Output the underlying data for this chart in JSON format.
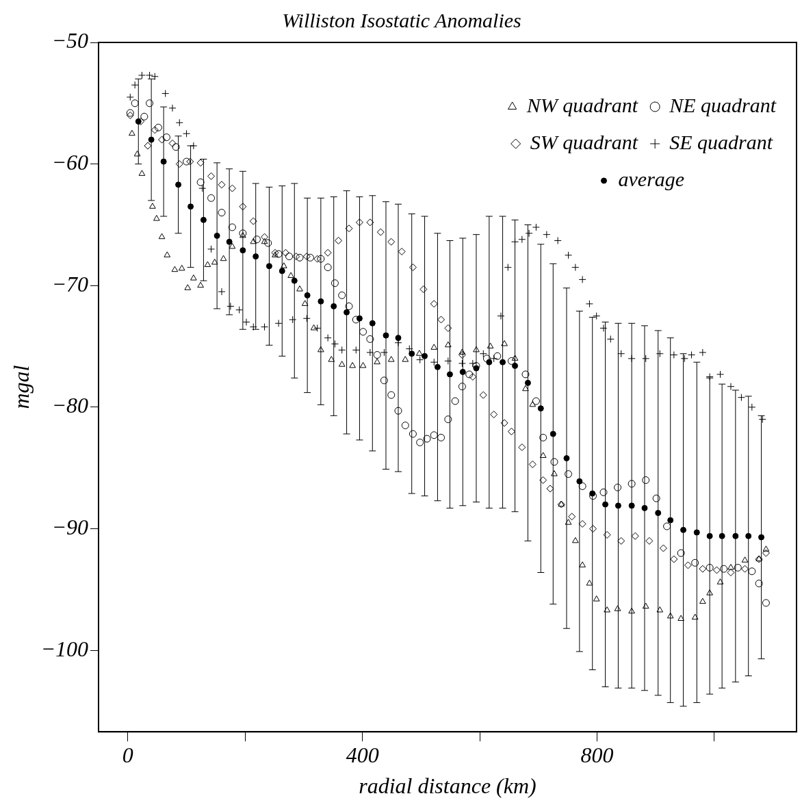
{
  "chart_data": {
    "type": "scatter",
    "title": "Williston Isostatic Anomalies",
    "xlabel": "radial distance (km)",
    "ylabel": "mgal",
    "xlim": [
      -50,
      1140
    ],
    "ylim": [
      -106.7,
      -50
    ],
    "xticks": [
      0,
      {
        "value": 200,
        "label": null
      },
      400,
      {
        "value": 600,
        "label": null
      },
      800,
      {
        "value": 1000,
        "label": null
      }
    ],
    "yticks": [
      -50,
      -60,
      -70,
      -80,
      -90,
      -100
    ],
    "legend": "top right",
    "series": [
      {
        "name": "NW quadrant",
        "color": "#000000",
        "marker": "triangle",
        "x": [
          7,
          16,
          24,
          42,
          49,
          58,
          67,
          80,
          92,
          102,
          112,
          124,
          136,
          148,
          163,
          178,
          196,
          214,
          233,
          251,
          266,
          278,
          293,
          302,
          317,
          329,
          347,
          365,
          383,
          401,
          425,
          449,
          473,
          497,
          522,
          546,
          570,
          594,
          618,
          642,
          660,
          678,
          690,
          708,
          727,
          739,
          751,
          763,
          775,
          787,
          799,
          817,
          835,
          859,
          883,
          907,
          925,
          943,
          967,
          980,
          992,
          1010,
          1028,
          1052,
          1076,
          1088
        ],
        "values": [
          -57.5,
          -59.2,
          -60.8,
          -63.5,
          -64.5,
          -66,
          -67.5,
          -68.7,
          -68.6,
          -70.2,
          -69.4,
          -70,
          -68.3,
          -68.1,
          -67.8,
          -66.8,
          -65.9,
          -66.4,
          -66.4,
          -67.5,
          -68.4,
          -69.2,
          -70.3,
          -71.5,
          -73.5,
          -75.3,
          -76.1,
          -76.5,
          -76.6,
          -76.6,
          -76.3,
          -76.1,
          -76.1,
          -75.6,
          -75.1,
          -74.9,
          -75.5,
          -75.3,
          -75,
          -74.8,
          -76,
          -78.5,
          -79.8,
          -84,
          -85.5,
          -88,
          -89.5,
          -91,
          -93,
          -94.5,
          -95.8,
          -96.7,
          -96.6,
          -96.8,
          -96.4,
          -96.7,
          -97.2,
          -97.4,
          -97.3,
          -96,
          -95.3,
          -94.4,
          -93.2,
          -92.6,
          -92.5,
          -91.7
        ]
      },
      {
        "name": "NE quadrant",
        "color": "#000000",
        "marker": "circle",
        "x": [
          4,
          12,
          28,
          37,
          52,
          66,
          82,
          100,
          124,
          142,
          160,
          178,
          196,
          220,
          239,
          257,
          275,
          293,
          311,
          329,
          341,
          353,
          365,
          377,
          389,
          401,
          413,
          425,
          437,
          449,
          461,
          473,
          486,
          498,
          510,
          522,
          534,
          546,
          558,
          570,
          582,
          594,
          612,
          630,
          654,
          678,
          696,
          708,
          727,
          751,
          775,
          793,
          811,
          835,
          859,
          883,
          901,
          919,
          943,
          967,
          992,
          1016,
          1040,
          1064,
          1076,
          1088
        ],
        "values": [
          -55.8,
          -55,
          -56.1,
          -55,
          -57,
          -57.8,
          -58.6,
          -59.8,
          -61.5,
          -62.8,
          -64,
          -65.2,
          -65.7,
          -66.2,
          -66.5,
          -67.4,
          -67.6,
          -67.7,
          -67.7,
          -67.8,
          -68.5,
          -69.8,
          -70.8,
          -71.7,
          -72.8,
          -73.8,
          -74.4,
          -75.7,
          -77.8,
          -79,
          -80.3,
          -81.5,
          -82.2,
          -82.9,
          -82.6,
          -82.3,
          -82.5,
          -81,
          -79.5,
          -78.3,
          -77.3,
          -76.6,
          -76,
          -75.8,
          -76.2,
          -77.3,
          -79.5,
          -82.5,
          -84.5,
          -85.5,
          -86.5,
          -87.3,
          -87,
          -86.6,
          -86.3,
          -86,
          -87.5,
          -89.8,
          -92,
          -92.8,
          -93.2,
          -93.3,
          -93.2,
          -93.5,
          -94.5,
          -96.1
        ]
      },
      {
        "name": "SW quadrant",
        "color": "#000000",
        "marker": "diamond",
        "x": [
          4,
          22,
          34,
          46,
          58,
          76,
          88,
          106,
          124,
          142,
          160,
          178,
          196,
          214,
          233,
          251,
          269,
          287,
          305,
          323,
          341,
          359,
          377,
          395,
          413,
          431,
          449,
          467,
          486,
          504,
          522,
          534,
          546,
          570,
          588,
          606,
          624,
          642,
          654,
          672,
          690,
          708,
          720,
          739,
          757,
          775,
          793,
          817,
          841,
          865,
          889,
          913,
          931,
          955,
          980,
          1004,
          1028,
          1052,
          1076,
          1088
        ],
        "values": [
          -56,
          -56.5,
          -58.5,
          -57.2,
          -58,
          -58.3,
          -60,
          -59.8,
          -59.9,
          -61,
          -61.7,
          -62,
          -63.5,
          -64.7,
          -66,
          -67.3,
          -67.3,
          -67.6,
          -67.6,
          -67.8,
          -67.3,
          -66.3,
          -65.3,
          -64.8,
          -64.8,
          -65.6,
          -66.4,
          -67.2,
          -68.5,
          -70.3,
          -71.5,
          -72.8,
          -73.5,
          -75.7,
          -77.5,
          -79,
          -80.6,
          -81.3,
          -82,
          -83.3,
          -84.7,
          -86,
          -86.7,
          -88,
          -89,
          -89.6,
          -90,
          -90.5,
          -91,
          -90.6,
          -91,
          -91.6,
          -92.5,
          -93,
          -93.3,
          -93.4,
          -93.6,
          -93.3,
          -92.5,
          -92
        ]
      },
      {
        "name": "SE quadrant",
        "color": "#000000",
        "marker": "cross",
        "x": [
          4,
          12,
          24,
          37,
          46,
          64,
          76,
          88,
          100,
          112,
          127,
          142,
          160,
          175,
          190,
          202,
          214,
          233,
          257,
          281,
          305,
          323,
          341,
          353,
          365,
          389,
          413,
          437,
          461,
          480,
          498,
          522,
          546,
          570,
          588,
          606,
          624,
          636,
          648,
          660,
          672,
          684,
          696,
          714,
          733,
          751,
          763,
          775,
          787,
          799,
          811,
          823,
          841,
          859,
          883,
          907,
          931,
          949,
          961,
          980,
          992,
          1010,
          1028,
          1046,
          1064,
          1082
        ],
        "values": [
          -54.5,
          -53.5,
          -52.7,
          -52.7,
          -52.8,
          -54.2,
          -55.4,
          -56.6,
          -57.5,
          -58.5,
          -62,
          -67,
          -70.5,
          -71.7,
          -72,
          -73,
          -73.4,
          -73.4,
          -73.1,
          -72.8,
          -72.7,
          -73.5,
          -74.3,
          -74.8,
          -75.3,
          -75.3,
          -75.5,
          -75.5,
          -74.7,
          -75.2,
          -76.1,
          -76.3,
          -76.2,
          -76.4,
          -76.4,
          -75.6,
          -76,
          -72.5,
          -68.5,
          -66.4,
          -66.2,
          -65.7,
          -65.2,
          -65.8,
          -66.3,
          -67.5,
          -68.5,
          -69.5,
          -71.5,
          -72.5,
          -73.5,
          -74.4,
          -75.6,
          -76,
          -76,
          -75.6,
          -75.7,
          -76,
          -75.7,
          -75.5,
          -77.5,
          -77.3,
          -78.3,
          -79.2,
          -80,
          -81
        ]
      },
      {
        "name": "average",
        "color": "#000000",
        "marker": "circle",
        "x": [
          18,
          40,
          61,
          86,
          107,
          129,
          152,
          173,
          196,
          218,
          241,
          263,
          284,
          306,
          329,
          351,
          373,
          395,
          417,
          440,
          461,
          484,
          506,
          528,
          549,
          571,
          594,
          616,
          639,
          660,
          682,
          704,
          725,
          748,
          770,
          792,
          814,
          836,
          859,
          881,
          904,
          925,
          947,
          970,
          992,
          1013,
          1036,
          1058,
          1080
        ],
        "values": [
          -56.5,
          -58,
          -59.8,
          -61.7,
          -63.5,
          -64.6,
          -65.9,
          -66.4,
          -67.1,
          -67.6,
          -68.4,
          -68.8,
          -69.6,
          -70.8,
          -71.3,
          -71.7,
          -72.2,
          -72.7,
          -73.1,
          -74.1,
          -74.3,
          -75.6,
          -75.8,
          -76.7,
          -77.3,
          -77.1,
          -76.8,
          -76.3,
          -76.3,
          -76.6,
          -78,
          -80.1,
          -82.2,
          -84.2,
          -86.1,
          -87.1,
          -88,
          -88.1,
          -88.1,
          -88.3,
          -88.7,
          -89.3,
          -90.1,
          -90.3,
          -90.6,
          -90.6,
          -90.6,
          -90.6,
          -90.7
        ],
        "errors": [
          3.5,
          5,
          4.5,
          4,
          5,
          5,
          6,
          6,
          6.5,
          6,
          6.5,
          7,
          8,
          8,
          8.5,
          9,
          10,
          10,
          10.5,
          11,
          11,
          11.5,
          11.5,
          11,
          11,
          11,
          11,
          12,
          12,
          12,
          13,
          13.5,
          14,
          14,
          14,
          14.5,
          15,
          15,
          15,
          15,
          15,
          15,
          14.5,
          14,
          13,
          12.5,
          12,
          11.5,
          10
        ]
      }
    ]
  }
}
